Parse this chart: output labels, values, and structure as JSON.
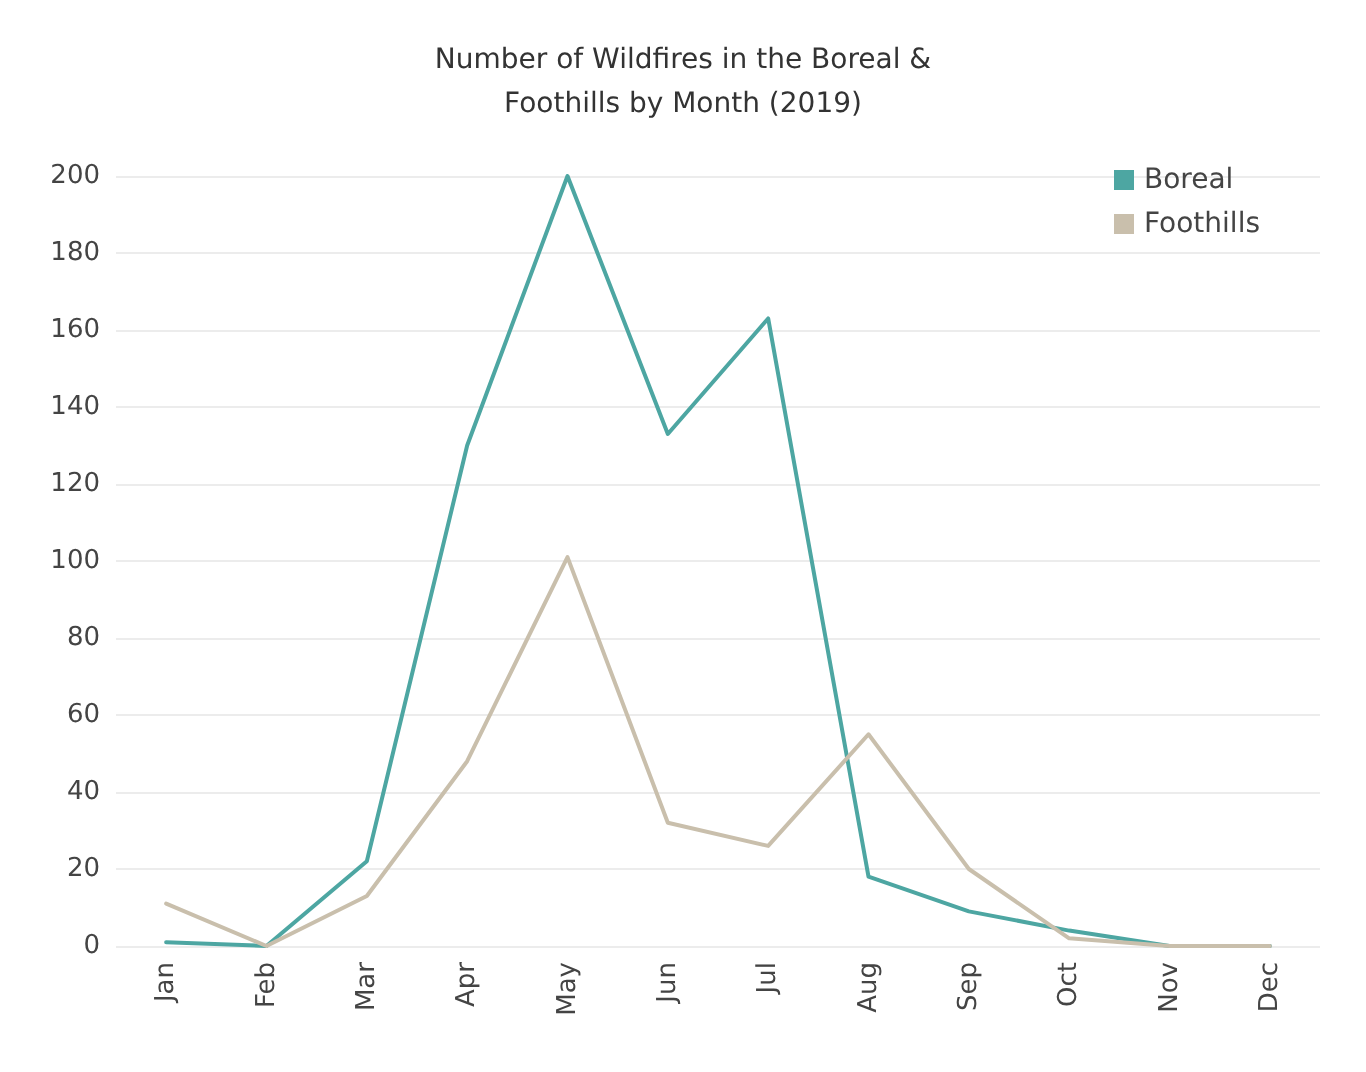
{
  "chart_data": {
    "type": "line",
    "title": "Number of Wildfires in the Boreal &\nFoothills by Month (2019)",
    "categories": [
      "Jan",
      "Feb",
      "Mar",
      "Apr",
      "May",
      "Jun",
      "Jul",
      "Aug",
      "Sep",
      "Oct",
      "Nov",
      "Dec"
    ],
    "series": [
      {
        "name": "Boreal",
        "color": "#4da6a2",
        "values": [
          1,
          0,
          22,
          130,
          200,
          133,
          163,
          18,
          9,
          4,
          0,
          0
        ]
      },
      {
        "name": "Foothills",
        "color": "#c9bfac",
        "values": [
          11,
          0,
          13,
          48,
          101,
          32,
          26,
          55,
          20,
          2,
          0,
          0
        ]
      }
    ],
    "ylim": [
      0,
      200
    ],
    "yticks": [
      0,
      20,
      40,
      60,
      80,
      100,
      120,
      140,
      160,
      180,
      200
    ],
    "grid": "y",
    "legend": "top right",
    "marker": "none",
    "line_style": "solid"
  }
}
